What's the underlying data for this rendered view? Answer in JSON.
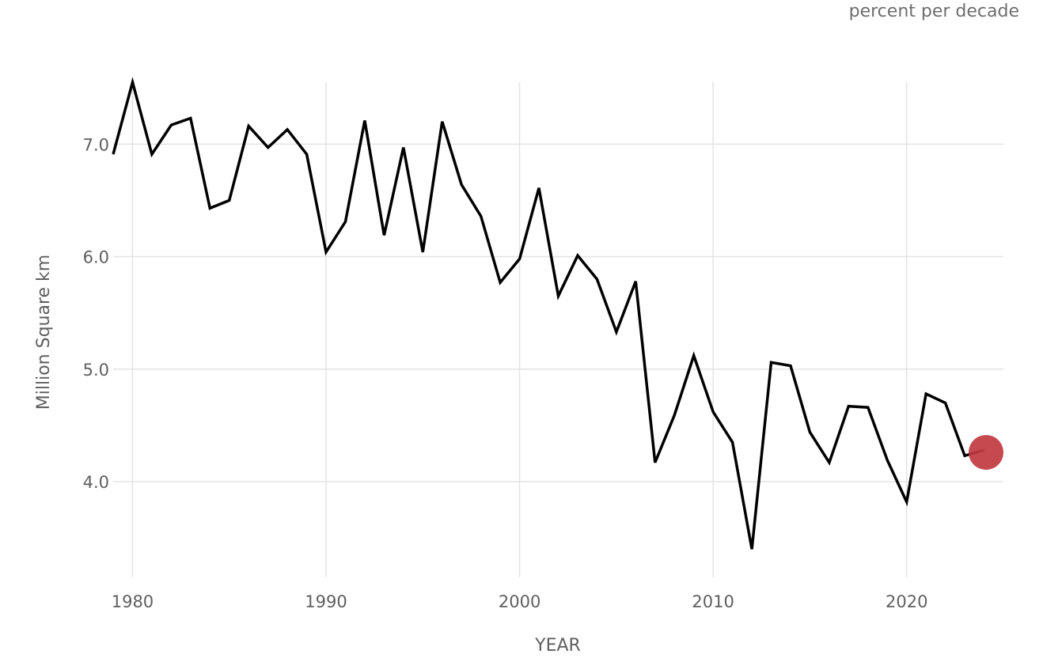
{
  "corner_note": "percent per decade",
  "chart_data": {
    "type": "line",
    "xlabel": "YEAR",
    "ylabel": "Million Square km",
    "xlim": [
      1979,
      2025
    ],
    "ylim": [
      3.15,
      7.55
    ],
    "x_ticks": [
      1980,
      1990,
      2000,
      2010,
      2020
    ],
    "x_tick_labels": [
      "1980",
      "1990",
      "2000",
      "2010",
      "2020"
    ],
    "y_ticks": [
      4.0,
      5.0,
      6.0,
      7.0
    ],
    "y_tick_labels": [
      "4.0",
      "5.0",
      "6.0",
      "7.0"
    ],
    "grid": true,
    "line_color": "#000000",
    "highlight_color": "#c0393f",
    "series": [
      {
        "x": [
          1979,
          1980,
          1981,
          1982,
          1983,
          1984,
          1985,
          1986,
          1987,
          1988,
          1989,
          1990,
          1991,
          1992,
          1993,
          1994,
          1995,
          1996,
          1997,
          1998,
          1999,
          2000,
          2001,
          2002,
          2003,
          2004,
          2005,
          2006,
          2007,
          2008,
          2009,
          2010,
          2011,
          2012,
          2013,
          2014,
          2015,
          2016,
          2017,
          2018,
          2019,
          2020,
          2021,
          2022,
          2023,
          2024
        ],
        "y": [
          6.91,
          7.55,
          6.91,
          7.17,
          7.23,
          6.43,
          6.5,
          7.16,
          6.97,
          7.13,
          6.91,
          6.04,
          6.31,
          7.21,
          6.19,
          6.97,
          6.04,
          7.2,
          6.64,
          6.36,
          5.77,
          5.98,
          6.61,
          5.65,
          6.01,
          5.8,
          5.33,
          5.78,
          4.17,
          4.59,
          5.12,
          4.62,
          4.35,
          3.4,
          5.06,
          5.03,
          4.44,
          4.17,
          4.67,
          4.66,
          4.19,
          3.82,
          4.78,
          4.7,
          4.23,
          4.28
        ]
      }
    ],
    "highlight_point": {
      "x": 2024.1,
      "y": 4.26
    }
  }
}
